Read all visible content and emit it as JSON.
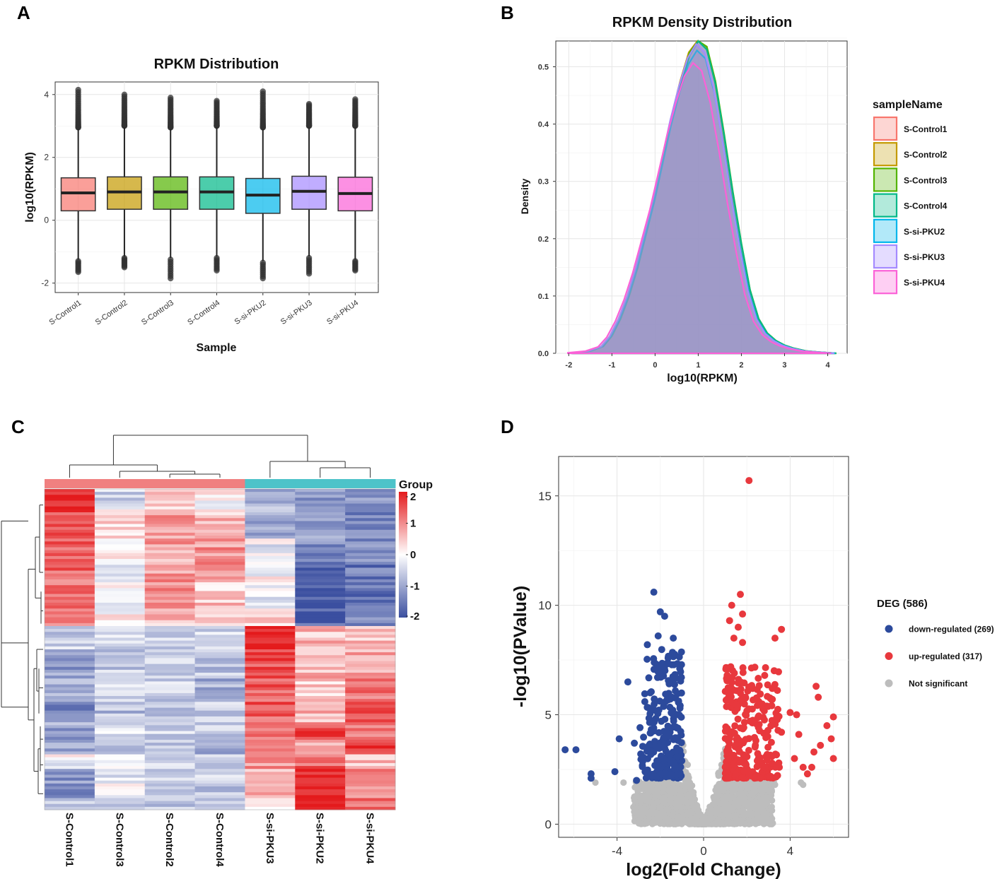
{
  "panels": {
    "a": {
      "label": "A"
    },
    "b": {
      "label": "B"
    },
    "c": {
      "label": "C"
    },
    "d": {
      "label": "D"
    }
  },
  "colors": {
    "S-Control1": "#F8766D",
    "S-Control2": "#C49A00",
    "S-Control3": "#53B400",
    "S-Control4": "#00B888",
    "S-si-PKU2": "#00B6EB",
    "S-si-PKU3": "#A58AFF",
    "S-si-PKU4": "#FB61D7",
    "group_control": "#F08080",
    "group_pku": "#4DC3C9",
    "heat_high": "#E41A1C",
    "heat_mid": "#FFFFFF",
    "heat_low": "#3B4FA0",
    "down": "#2C4A9C",
    "up": "#E8383D",
    "ns": "#BDBDBD",
    "density_fill": "#9C95C6"
  },
  "chart_data": [
    {
      "id": "A",
      "type": "box",
      "title": "RPKM Distribution",
      "xlabel": "Sample",
      "ylabel": "log10(RPKM)",
      "ylim": [
        -2.3,
        4.4
      ],
      "yticks": [
        -2,
        0,
        2,
        4
      ],
      "categories": [
        "S-Control1",
        "S-Control2",
        "S-Control3",
        "S-Control4",
        "S-si-PKU2",
        "S-si-PKU3",
        "S-si-PKU4"
      ],
      "boxes": [
        {
          "q1": 0.3,
          "median": 0.87,
          "q3": 1.35,
          "whisker_low": -1.25,
          "whisker_high": 2.9,
          "out_low_min": -1.65,
          "out_high_max": 4.15
        },
        {
          "q1": 0.35,
          "median": 0.9,
          "q3": 1.38,
          "whisker_low": -1.15,
          "whisker_high": 2.95,
          "out_low_min": -1.5,
          "out_high_max": 4.0
        },
        {
          "q1": 0.35,
          "median": 0.9,
          "q3": 1.38,
          "whisker_low": -1.2,
          "whisker_high": 2.9,
          "out_low_min": -1.85,
          "out_high_max": 3.9
        },
        {
          "q1": 0.35,
          "median": 0.9,
          "q3": 1.38,
          "whisker_low": -1.15,
          "whisker_high": 2.95,
          "out_low_min": -1.6,
          "out_high_max": 3.8
        },
        {
          "q1": 0.22,
          "median": 0.8,
          "q3": 1.33,
          "whisker_low": -1.3,
          "whisker_high": 2.9,
          "out_low_min": -1.85,
          "out_high_max": 4.1
        },
        {
          "q1": 0.35,
          "median": 0.92,
          "q3": 1.4,
          "whisker_low": -1.15,
          "whisker_high": 2.95,
          "out_low_min": -1.7,
          "out_high_max": 3.7
        },
        {
          "q1": 0.3,
          "median": 0.85,
          "q3": 1.37,
          "whisker_low": -1.25,
          "whisker_high": 2.95,
          "out_low_min": -1.6,
          "out_high_max": 3.85
        }
      ]
    },
    {
      "id": "B",
      "type": "area",
      "title": "RPKM Density Distribution",
      "xlabel": "log10(RPKM)",
      "ylabel": "Density",
      "xlim": [
        -2.3,
        4.45
      ],
      "ylim": [
        0,
        0.545
      ],
      "xticks": [
        -2,
        -1,
        0,
        1,
        2,
        3,
        4
      ],
      "yticks": [
        0.0,
        0.1,
        0.2,
        0.3,
        0.4,
        0.5
      ],
      "ytick_labels": [
        "0.0",
        "0.1",
        "0.2",
        "0.3",
        "0.4",
        "0.5"
      ],
      "legend_title": "sampleName",
      "legend_placement": "right",
      "x": [
        -1.9,
        -1.5,
        -1.2,
        -1.0,
        -0.8,
        -0.6,
        -0.4,
        -0.2,
        0.0,
        0.2,
        0.4,
        0.6,
        0.8,
        1.0,
        1.2,
        1.4,
        1.6,
        1.8,
        2.0,
        2.2,
        2.4,
        2.6,
        2.8,
        3.0,
        3.2,
        3.5,
        3.8,
        4.2
      ],
      "series": [
        {
          "name": "S-Control1",
          "peak": 1.0,
          "scale": 1.0
        },
        {
          "name": "S-Control2",
          "peak": 0.98,
          "scale": 1.01
        },
        {
          "name": "S-Control3",
          "peak": 1.0,
          "scale": 1.01
        },
        {
          "name": "S-Control4",
          "peak": 1.0,
          "scale": 1.0
        },
        {
          "name": "S-si-PKU2",
          "peak": 0.97,
          "scale": 0.97
        },
        {
          "name": "S-si-PKU3",
          "peak": 0.95,
          "scale": 0.99
        },
        {
          "name": "S-si-PKU4",
          "peak": 0.88,
          "scale": 0.93
        }
      ],
      "base_density": [
        0.001,
        0.004,
        0.012,
        0.03,
        0.06,
        0.1,
        0.15,
        0.21,
        0.27,
        0.34,
        0.41,
        0.47,
        0.52,
        0.545,
        0.53,
        0.47,
        0.38,
        0.28,
        0.19,
        0.11,
        0.06,
        0.035,
        0.022,
        0.014,
        0.009,
        0.004,
        0.002,
        0.0
      ]
    },
    {
      "id": "C",
      "type": "heatmap",
      "group_legend_label": "Group",
      "colorbar_ticks": [
        2,
        1,
        0,
        -1,
        -2
      ],
      "colorbar_labels": [
        "2",
        "1",
        "0",
        "-1",
        "-2"
      ],
      "columns": [
        "S-Control1",
        "S-Control3",
        "S-Control2",
        "S-Control4",
        "S-si-PKU3",
        "S-si-PKU2",
        "S-si-PKU4"
      ],
      "column_groups": [
        "control",
        "control",
        "control",
        "control",
        "pku",
        "pku",
        "pku"
      ],
      "blocks": [
        {
          "rows": 7,
          "values": [
            2.0,
            -0.5,
            0.3,
            0.0,
            -0.8,
            -1.2,
            -1.3
          ]
        },
        {
          "rows": 10,
          "values": [
            1.5,
            0.3,
            0.9,
            0.6,
            -0.9,
            -1.2,
            -1.4
          ]
        },
        {
          "rows": 9,
          "values": [
            1.4,
            0.1,
            0.8,
            0.9,
            -0.2,
            -1.3,
            -1.2
          ]
        },
        {
          "rows": 6,
          "values": [
            1.3,
            -0.1,
            0.9,
            0.7,
            0.0,
            -1.9,
            -1.5
          ]
        },
        {
          "rows": 9,
          "values": [
            1.2,
            0.0,
            0.9,
            0.5,
            -0.3,
            -1.9,
            -1.6
          ]
        },
        {
          "rows": 6,
          "values": [
            1.1,
            0.1,
            0.6,
            0.4,
            0.3,
            -1.8,
            -1.2
          ]
        },
        {
          "rows": 8,
          "values": [
            -0.6,
            -0.5,
            -0.6,
            -0.4,
            2.0,
            0.6,
            0.6
          ]
        },
        {
          "rows": 10,
          "values": [
            -1.1,
            -0.6,
            -0.4,
            -0.7,
            1.5,
            0.6,
            0.8
          ]
        },
        {
          "rows": 8,
          "values": [
            -0.8,
            -0.4,
            -0.5,
            -0.9,
            1.4,
            0.4,
            1.1
          ]
        },
        {
          "rows": 7,
          "values": [
            -1.3,
            -0.7,
            -0.6,
            -0.5,
            1.4,
            0.6,
            1.4
          ]
        },
        {
          "rows": 6,
          "values": [
            -1.0,
            -0.4,
            -0.5,
            -0.6,
            1.3,
            1.6,
            1.0
          ]
        },
        {
          "rows": 5,
          "values": [
            -0.9,
            -0.7,
            -0.8,
            -0.9,
            1.3,
            0.5,
            1.9
          ]
        },
        {
          "rows": 5,
          "values": [
            -0.1,
            0.2,
            -0.3,
            -0.4,
            0.9,
            1.3,
            0.6
          ]
        },
        {
          "rows": 10,
          "values": [
            -1.2,
            -0.2,
            -0.5,
            -0.6,
            0.6,
            2.0,
            0.9
          ]
        },
        {
          "rows": 4,
          "values": [
            -0.7,
            -0.4,
            -0.6,
            -0.7,
            0.3,
            1.9,
            1.2
          ]
        }
      ]
    },
    {
      "id": "D",
      "type": "scatter",
      "xlabel": "log2(Fold Change)",
      "ylabel": "-log10(PValue)",
      "xlim": [
        -6.7,
        6.7
      ],
      "ylim": [
        -0.6,
        16.8
      ],
      "xticks": [
        -4,
        0,
        4
      ],
      "xtick_labels": [
        "-4",
        "0",
        "4"
      ],
      "yticks": [
        0,
        5,
        10,
        15
      ],
      "ytick_labels": [
        "0",
        "5",
        "10",
        "15"
      ],
      "legend_title": "DEG (586)",
      "legend": [
        {
          "key": "down",
          "label": "down-regulated (269)"
        },
        {
          "key": "up",
          "label": "up-regulated (317)"
        },
        {
          "key": "ns",
          "label": "Not significant"
        }
      ],
      "highlight_points": {
        "up": [
          [
            2.1,
            15.7
          ],
          [
            1.7,
            10.5
          ],
          [
            1.3,
            10.0
          ],
          [
            1.8,
            9.6
          ],
          [
            1.2,
            9.3
          ],
          [
            1.6,
            9.0
          ],
          [
            3.6,
            8.9
          ],
          [
            3.3,
            8.5
          ],
          [
            1.4,
            8.5
          ],
          [
            1.8,
            8.3
          ],
          [
            5.2,
            6.3
          ],
          [
            5.3,
            5.8
          ],
          [
            4.0,
            5.1
          ],
          [
            4.3,
            5.0
          ],
          [
            6.0,
            4.9
          ],
          [
            5.7,
            4.5
          ],
          [
            4.4,
            4.1
          ],
          [
            3.6,
            4.2
          ],
          [
            5.9,
            3.9
          ],
          [
            5.1,
            3.3
          ],
          [
            5.4,
            3.6
          ],
          [
            6.0,
            3.0
          ],
          [
            4.2,
            3.0
          ],
          [
            4.6,
            2.6
          ],
          [
            5.0,
            2.6
          ],
          [
            3.5,
            2.6
          ],
          [
            4.8,
            2.3
          ]
        ],
        "down": [
          [
            -2.3,
            10.6
          ],
          [
            -2.0,
            9.7
          ],
          [
            -1.8,
            9.5
          ],
          [
            -2.1,
            8.6
          ],
          [
            -1.4,
            8.5
          ],
          [
            -2.6,
            8.2
          ],
          [
            -3.5,
            6.5
          ],
          [
            -6.4,
            3.4
          ],
          [
            -5.9,
            3.4
          ],
          [
            -5.2,
            2.3
          ],
          [
            -5.2,
            2.1
          ],
          [
            -4.1,
            2.4
          ],
          [
            -3.9,
            3.9
          ],
          [
            -3.1,
            2.0
          ],
          [
            -3.2,
            3.7
          ]
        ],
        "ns": [
          [
            -5.0,
            1.9
          ],
          [
            -3.7,
            1.9
          ],
          [
            -3.1,
            1.3
          ],
          [
            -2.9,
            1.0
          ],
          [
            4.6,
            1.8
          ],
          [
            4.5,
            1.9
          ],
          [
            3.3,
            1.8
          ]
        ]
      },
      "cloud": {
        "down": {
          "count": 254,
          "xmin": -3.1,
          "xmax": -1.0,
          "ymin": 2.1,
          "ymax": 8.0
        },
        "up": {
          "count": 290,
          "xmin": 1.0,
          "xmax": 3.5,
          "ymin": 2.1,
          "ymax": 7.2
        },
        "ns_count": 1500
      }
    }
  ]
}
